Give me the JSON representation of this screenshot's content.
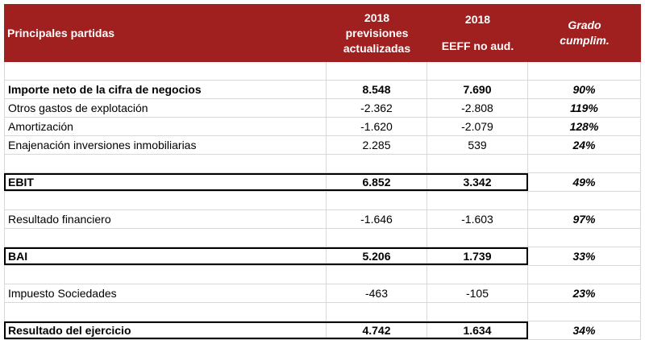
{
  "header": {
    "col0": "Principales partidas",
    "col1": [
      "2018",
      "previsiones",
      "actualizadas"
    ],
    "col2": [
      "2018",
      "EEFF no aud."
    ],
    "col3": [
      "Grado",
      "cumplim."
    ]
  },
  "rows": [
    {
      "label": "",
      "prev": "",
      "eeff": "",
      "grado": ""
    },
    {
      "label": "Importe neto de la cifra de negocios",
      "prev": "8.548",
      "eeff": "7.690",
      "grado": "90%"
    },
    {
      "label": "Otros gastos de explotación",
      "prev": "-2.362",
      "eeff": "-2.808",
      "grado": "119%"
    },
    {
      "label": "Amortización",
      "prev": "-1.620",
      "eeff": "-2.079",
      "grado": "128%"
    },
    {
      "label": "Enajenación inversiones inmobiliarias",
      "prev": "2.285",
      "eeff": "539",
      "grado": "24%"
    },
    {
      "label": "",
      "prev": "",
      "eeff": "",
      "grado": ""
    },
    {
      "label": "EBIT",
      "prev": "6.852",
      "eeff": "3.342",
      "grado": "49%"
    },
    {
      "label": "",
      "prev": "",
      "eeff": "",
      "grado": ""
    },
    {
      "label": "Resultado financiero",
      "prev": "-1.646",
      "eeff": "-1.603",
      "grado": "97%"
    },
    {
      "label": "",
      "prev": "",
      "eeff": "",
      "grado": ""
    },
    {
      "label": "BAI",
      "prev": "5.206",
      "eeff": "1.739",
      "grado": "33%"
    },
    {
      "label": "",
      "prev": "",
      "eeff": "",
      "grado": ""
    },
    {
      "label": "Impuesto Sociedades",
      "prev": "-463",
      "eeff": "-105",
      "grado": "23%"
    },
    {
      "label": "",
      "prev": "",
      "eeff": "",
      "grado": ""
    },
    {
      "label": "Resultado del ejercicio",
      "prev": "4.742",
      "eeff": "1.634",
      "grado": "34%"
    }
  ]
}
